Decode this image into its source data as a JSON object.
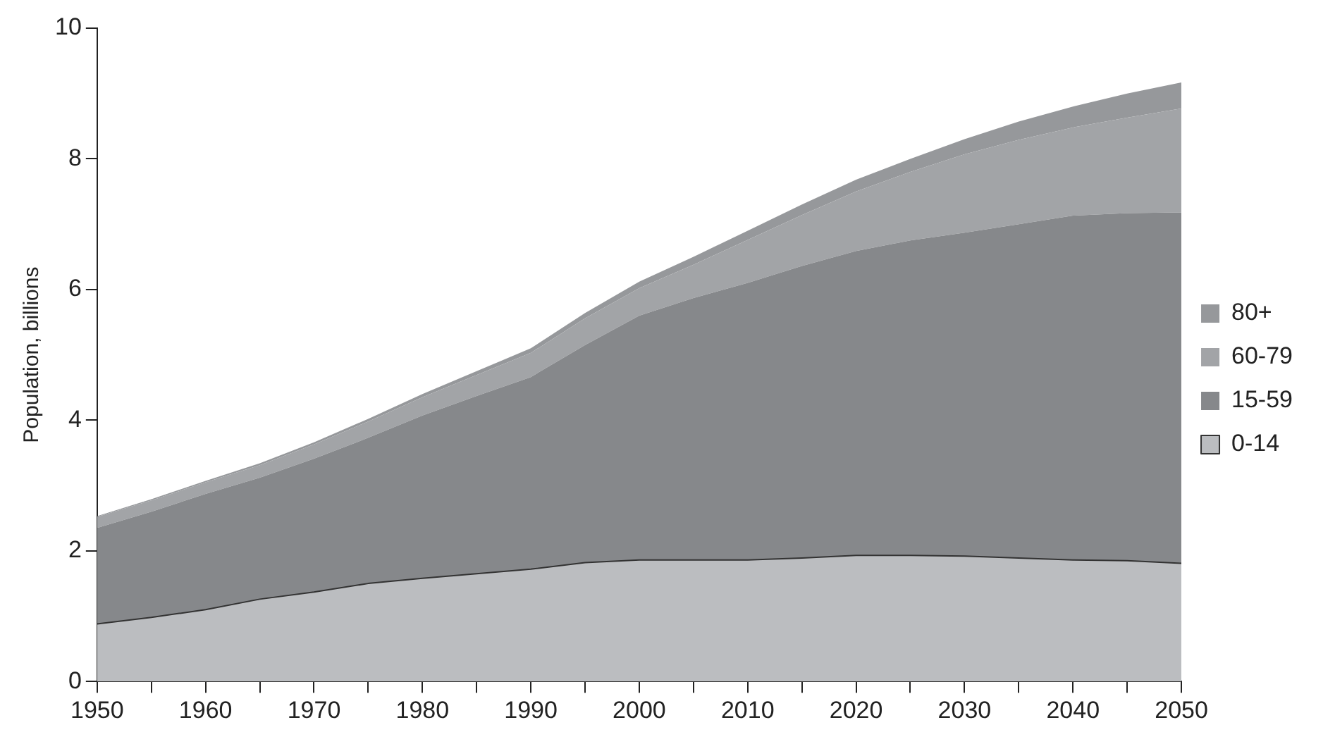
{
  "chart_data": {
    "type": "area",
    "stacked": true,
    "ylabel": "Population, billions",
    "x": [
      1950,
      1955,
      1960,
      1965,
      1970,
      1975,
      1980,
      1985,
      1990,
      1995,
      2000,
      2005,
      2010,
      2015,
      2020,
      2025,
      2030,
      2035,
      2040,
      2045,
      2050
    ],
    "series": [
      {
        "name": "0-14",
        "color": "#bbbdc0",
        "values": [
          0.88,
          0.98,
          1.1,
          1.26,
          1.37,
          1.5,
          1.58,
          1.65,
          1.72,
          1.82,
          1.86,
          1.86,
          1.86,
          1.89,
          1.93,
          1.93,
          1.92,
          1.89,
          1.86,
          1.85,
          1.81
        ]
      },
      {
        "name": "15-59",
        "color": "#86888b",
        "values": [
          1.47,
          1.62,
          1.77,
          1.86,
          2.04,
          2.23,
          2.49,
          2.72,
          2.94,
          3.33,
          3.74,
          4.01,
          4.24,
          4.47,
          4.66,
          4.82,
          4.95,
          5.11,
          5.27,
          5.32,
          5.37
        ]
      },
      {
        "name": "60-79",
        "color": "#a2a4a7",
        "values": [
          0.17,
          0.17,
          0.18,
          0.19,
          0.22,
          0.25,
          0.28,
          0.32,
          0.37,
          0.41,
          0.42,
          0.51,
          0.66,
          0.78,
          0.91,
          1.05,
          1.2,
          1.29,
          1.35,
          1.46,
          1.59
        ]
      },
      {
        "name": "80+",
        "color": "#96989b",
        "values": [
          0.01,
          0.02,
          0.02,
          0.03,
          0.03,
          0.04,
          0.05,
          0.06,
          0.07,
          0.08,
          0.1,
          0.12,
          0.14,
          0.16,
          0.18,
          0.2,
          0.23,
          0.28,
          0.32,
          0.37,
          0.4
        ]
      }
    ],
    "xlim": [
      1950,
      2050
    ],
    "xticks": [
      1950,
      {
        "value": 1955,
        "label": null
      },
      1960,
      {
        "value": 1965,
        "label": null
      },
      1970,
      {
        "value": 1975,
        "label": null
      },
      1980,
      {
        "value": 1985,
        "label": null
      },
      1990,
      {
        "value": 1995,
        "label": null
      },
      2000,
      {
        "value": 2005,
        "label": null
      },
      2010,
      {
        "value": 2015,
        "label": null
      },
      2020,
      {
        "value": 2025,
        "label": null
      },
      2030,
      {
        "value": 2035,
        "label": null
      },
      2040,
      {
        "value": 2045,
        "label": null
      },
      2050
    ],
    "ylim": [
      0,
      10
    ],
    "yticks": [
      0,
      2,
      4,
      6,
      8,
      10
    ],
    "grid": false,
    "legend": "right"
  }
}
